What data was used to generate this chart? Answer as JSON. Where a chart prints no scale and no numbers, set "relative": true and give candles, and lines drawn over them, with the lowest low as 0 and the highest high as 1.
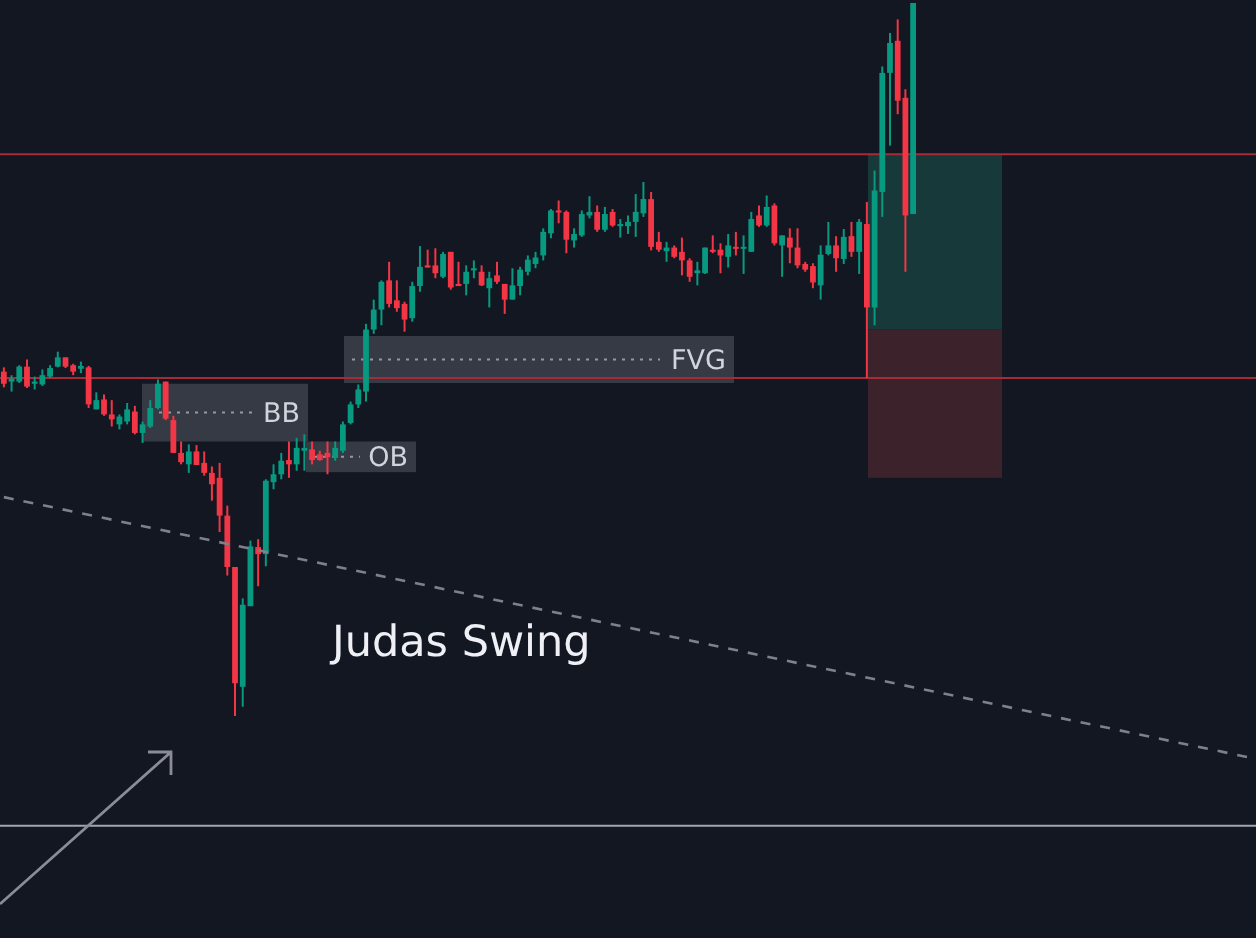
{
  "chart_data": {
    "type": "candlestick",
    "relative": true,
    "categories": [
      null,
      null,
      null,
      null,
      null,
      null,
      null,
      null,
      null,
      null,
      null,
      null,
      null,
      null,
      null,
      null,
      null,
      null,
      null,
      null,
      null,
      null,
      null,
      null,
      null,
      null,
      null,
      null,
      null,
      null,
      null,
      null,
      null,
      null,
      null,
      null,
      null,
      null,
      null,
      null,
      null,
      null,
      null,
      null,
      null,
      null,
      null,
      null,
      null,
      null,
      null,
      null,
      null,
      null,
      null,
      null,
      null,
      null,
      null,
      null,
      null,
      null,
      null,
      null,
      null,
      null,
      null,
      null,
      null,
      null,
      null,
      null,
      null,
      null,
      null,
      null,
      null,
      null,
      null,
      null,
      null,
      null,
      null,
      null,
      null,
      null,
      null,
      null,
      null,
      null,
      null,
      null,
      null,
      null,
      null,
      null,
      null,
      null,
      null,
      null,
      null,
      null,
      null,
      null,
      null,
      null,
      null,
      null,
      null,
      null,
      null,
      null,
      null,
      null,
      null,
      null,
      null,
      null,
      null,
      null,
      null,
      null,
      null,
      null,
      null,
      null,
      null,
      null,
      null,
      null,
      null,
      null,
      null,
      null,
      null,
      null,
      null,
      null,
      null,
      null,
      null,
      null,
      null,
      null,
      null,
      null,
      null,
      null,
      null,
      null,
      null,
      null,
      null,
      null,
      null,
      null,
      null,
      null,
      null,
      null,
      null,
      null,
      null
    ],
    "series": [
      {
        "ohlc": [
          [
            0.483,
            0.489,
            0.461,
            0.466
          ],
          [
            0.469,
            0.478,
            0.455,
            0.473
          ],
          [
            0.469,
            0.492,
            0.467,
            0.49
          ],
          [
            0.49,
            0.5,
            0.46,
            0.462
          ],
          [
            0.466,
            0.476,
            0.458,
            0.469
          ],
          [
            0.465,
            0.486,
            0.463,
            0.478
          ],
          [
            0.476,
            0.492,
            0.474,
            0.488
          ],
          [
            0.49,
            0.511,
            0.489,
            0.503
          ],
          [
            0.503,
            0.503,
            0.488,
            0.49
          ],
          [
            0.492,
            0.494,
            0.478,
            0.483
          ],
          [
            0.487,
            0.497,
            0.481,
            0.491
          ],
          [
            0.489,
            0.491,
            0.432,
            0.437
          ],
          [
            0.43,
            0.454,
            0.43,
            0.443
          ],
          [
            0.444,
            0.451,
            0.421,
            0.423
          ],
          [
            0.423,
            0.443,
            0.406,
            0.416
          ],
          [
            0.409,
            0.423,
            0.402,
            0.42
          ],
          [
            0.413,
            0.439,
            0.409,
            0.43
          ],
          [
            0.427,
            0.435,
            0.395,
            0.397
          ],
          [
            0.397,
            0.413,
            0.383,
            0.409
          ],
          [
            0.406,
            0.443,
            0.404,
            0.432
          ],
          [
            0.432,
            0.472,
            0.43,
            0.466
          ],
          [
            0.469,
            0.469,
            0.415,
            0.417
          ],
          [
            0.415,
            0.421,
            0.369,
            0.369
          ],
          [
            0.369,
            0.385,
            0.353,
            0.356
          ],
          [
            0.353,
            0.381,
            0.341,
            0.371
          ],
          [
            0.371,
            0.38,
            0.352,
            0.352
          ],
          [
            0.355,
            0.371,
            0.337,
            0.341
          ],
          [
            0.341,
            0.35,
            0.302,
            0.325
          ],
          [
            0.334,
            0.355,
            0.258,
            0.281
          ],
          [
            0.281,
            0.295,
            0.197,
            0.209
          ],
          [
            0.209,
            0.209,
            0,
            0.046
          ],
          [
            0.041,
            0.165,
            0.013,
            0.156
          ],
          [
            0.154,
            0.246,
            0.154,
            0.238
          ],
          [
            0.237,
            0.248,
            0.182,
            0.227
          ],
          [
            0.227,
            0.332,
            0.21,
            0.33
          ],
          [
            0.328,
            0.353,
            0.318,
            0.339
          ],
          [
            0.339,
            0.369,
            0.332,
            0.358
          ],
          [
            0.359,
            0.385,
            0.334,
            0.353
          ],
          [
            0.353,
            0.39,
            0.344,
            0.376
          ],
          [
            0.372,
            0.395,
            0.344,
            0.376
          ],
          [
            0.374,
            0.385,
            0.353,
            0.359
          ],
          [
            0.367,
            0.372,
            0.358,
            0.359
          ],
          [
            0.369,
            0.385,
            0.339,
            0.363
          ],
          [
            0.362,
            0.385,
            0.358,
            0.376
          ],
          [
            0.372,
            0.413,
            0.369,
            0.409
          ],
          [
            0.411,
            0.441,
            0.409,
            0.437
          ],
          [
            0.437,
            0.465,
            0.432,
            0.458
          ],
          [
            0.455,
            0.55,
            0.441,
            0.542
          ],
          [
            0.542,
            0.584,
            0.536,
            0.57
          ],
          [
            0.57,
            0.611,
            0.548,
            0.609
          ],
          [
            0.611,
            0.637,
            0.573,
            0.578
          ],
          [
            0.583,
            0.611,
            0.567,
            0.572
          ],
          [
            0.578,
            0.581,
            0.539,
            0.556
          ],
          [
            0.558,
            0.609,
            0.553,
            0.603
          ],
          [
            0.603,
            0.659,
            0.595,
            0.63
          ],
          [
            0.632,
            0.654,
            0.629,
            0.629
          ],
          [
            0.632,
            0.656,
            0.614,
            0.621
          ],
          [
            0.616,
            0.651,
            0.614,
            0.648
          ],
          [
            0.651,
            0.651,
            0.598,
            0.601
          ],
          [
            0.606,
            0.637,
            0.603,
            0.603
          ],
          [
            0.606,
            0.632,
            0.59,
            0.623
          ],
          [
            0.625,
            0.639,
            0.614,
            0.628
          ],
          [
            0.623,
            0.632,
            0.603,
            0.604
          ],
          [
            0.6,
            0.623,
            0.573,
            0.614
          ],
          [
            0.618,
            0.637,
            0.606,
            0.609
          ],
          [
            0.606,
            0.606,
            0.564,
            0.584
          ],
          [
            0.584,
            0.628,
            0.584,
            0.604
          ],
          [
            0.603,
            0.63,
            0.59,
            0.626
          ],
          [
            0.623,
            0.646,
            0.618,
            0.64
          ],
          [
            0.634,
            0.651,
            0.628,
            0.643
          ],
          [
            0.646,
            0.684,
            0.639,
            0.679
          ],
          [
            0.677,
            0.711,
            0.67,
            0.709
          ],
          [
            0.709,
            0.723,
            0.691,
            0.707
          ],
          [
            0.707,
            0.709,
            0.649,
            0.668
          ],
          [
            0.667,
            0.684,
            0.657,
            0.676
          ],
          [
            0.674,
            0.709,
            0.672,
            0.704
          ],
          [
            0.702,
            0.729,
            0.698,
            0.707
          ],
          [
            0.707,
            0.716,
            0.679,
            0.682
          ],
          [
            0.682,
            0.714,
            0.679,
            0.704
          ],
          [
            0.707,
            0.711,
            0.686,
            0.688
          ],
          [
            0.687,
            0.697,
            0.671,
            0.69
          ],
          [
            0.687,
            0.702,
            0.676,
            0.693
          ],
          [
            0.693,
            0.732,
            0.672,
            0.707
          ],
          [
            0.705,
            0.749,
            0.7,
            0.725
          ],
          [
            0.725,
            0.735,
            0.653,
            0.658
          ],
          [
            0.665,
            0.679,
            0.651,
            0.654
          ],
          [
            0.652,
            0.665,
            0.637,
            0.657
          ],
          [
            0.657,
            0.66,
            0.642,
            0.644
          ],
          [
            0.651,
            0.671,
            0.618,
            0.639
          ],
          [
            0.639,
            0.642,
            0.609,
            0.616
          ],
          [
            0.621,
            0.637,
            0.604,
            0.625
          ],
          [
            0.621,
            0.657,
            0.62,
            0.657
          ],
          [
            0.654,
            0.674,
            0.649,
            0.651
          ],
          [
            0.654,
            0.663,
            0.621,
            0.646
          ],
          [
            0.644,
            0.676,
            0.629,
            0.66
          ],
          [
            0.658,
            0.679,
            0.646,
            0.656
          ],
          [
            0.656,
            0.674,
            0.62,
            0.658
          ],
          [
            0.651,
            0.707,
            0.651,
            0.697
          ],
          [
            0.702,
            0.716,
            0.686,
            0.688
          ],
          [
            0.688,
            0.73,
            0.686,
            0.714
          ],
          [
            0.716,
            0.719,
            0.66,
            0.663
          ],
          [
            0.66,
            0.674,
            0.616,
            0.674
          ],
          [
            0.671,
            0.684,
            0.635,
            0.657
          ],
          [
            0.657,
            0.684,
            0.628,
            0.632
          ],
          [
            0.634,
            0.637,
            0.623,
            0.626
          ],
          [
            0.631,
            0.635,
            0.6,
            0.608
          ],
          [
            0.604,
            0.66,
            0.584,
            0.647
          ],
          [
            0.648,
            0.693,
            0.646,
            0.66
          ],
          [
            0.66,
            0.673,
            0.623,
            0.642
          ],
          [
            0.641,
            0.683,
            0.634,
            0.672
          ],
          [
            0.673,
            0.693,
            0.644,
            0.651
          ],
          [
            0.651,
            0.697,
            0.62,
            0.693
          ],
          [
            0.69,
            0.721,
            0.474,
            0.573
          ],
          [
            0.573,
            0.765,
            0.548,
            0.737
          ],
          [
            0.735,
            0.911,
            0.7,
            0.902
          ],
          [
            0.902,
            0.958,
            0.8,
            0.944
          ],
          [
            0.947,
            0.977,
            0.844,
            0.863
          ],
          [
            0.867,
            0.879,
            0.623,
            0.702
          ],
          [
            0.704,
            1,
            0.704,
            1
          ],
          null,
          null,
          null,
          null,
          null,
          null,
          null,
          null,
          null,
          null,
          null,
          null,
          null,
          null,
          null,
          null,
          null,
          null,
          null,
          null,
          null,
          null,
          null,
          null,
          null,
          null,
          null,
          null,
          null,
          null,
          null,
          null,
          null,
          null,
          null,
          null,
          null,
          null,
          null,
          null,
          null,
          null,
          null,
          null
        ],
        "colors": [
          "#f23645",
          "#089981",
          "#089981",
          "#f23645",
          "#089981",
          "#089981",
          "#089981",
          "#089981",
          "#f23645",
          "#f23645",
          "#089981",
          "#f23645",
          "#089981",
          "#f23645",
          "#f23645",
          "#089981",
          "#089981",
          "#f23645",
          "#089981",
          "#089981",
          "#089981",
          "#f23645",
          "#f23645",
          "#f23645",
          "#089981",
          "#f23645",
          "#f23645",
          "#f23645",
          "#f23645",
          "#f23645",
          "#f23645",
          "#089981",
          "#089981",
          "#f23645",
          "#089981",
          "#089981",
          "#089981",
          "#f23645",
          "#089981",
          "#089981",
          "#f23645",
          "#f23645",
          "#f23645",
          "#089981",
          "#089981",
          "#089981",
          "#089981",
          "#089981",
          "#089981",
          "#089981",
          "#f23645",
          "#f23645",
          "#f23645",
          "#089981",
          "#089981",
          "#f23645",
          "#f23645",
          "#089981",
          "#f23645",
          "#f23645",
          "#089981",
          "#089981",
          "#f23645",
          "#089981",
          "#f23645",
          "#f23645",
          "#089981",
          "#089981",
          "#089981",
          "#089981",
          "#089981",
          "#089981",
          "#f23645",
          "#f23645",
          "#089981",
          "#089981",
          "#089981",
          "#f23645",
          "#089981",
          "#f23645",
          "#089981",
          "#089981",
          "#089981",
          "#089981",
          "#f23645",
          "#f23645",
          "#089981",
          "#f23645",
          "#f23645",
          "#f23645",
          "#089981",
          "#089981",
          "#f23645",
          "#f23645",
          "#089981",
          "#f23645",
          "#089981",
          "#089981",
          "#f23645",
          "#089981",
          "#f23645",
          "#089981",
          "#f23645",
          "#f23645",
          "#f23645",
          "#f23645",
          "#089981",
          "#089981",
          "#f23645",
          "#089981",
          "#f23645",
          "#089981",
          "#f23645",
          "#089981",
          "#089981",
          "#089981",
          "#f23645",
          "#f23645",
          "#089981",
          null,
          null,
          null,
          null,
          null,
          null,
          null,
          null,
          null,
          null,
          null,
          null,
          null,
          null,
          null,
          null,
          null,
          null,
          null,
          null,
          null,
          null,
          null,
          null,
          null,
          null,
          null,
          null,
          null,
          null,
          null,
          null,
          null,
          null,
          null,
          null,
          null,
          null,
          null,
          null,
          null,
          null,
          null,
          null
        ]
      },
      {
        "type": "line",
        "color": "#7e818b",
        "line_style": "dashed",
        "values": [
          0.307,
          null,
          null,
          null,
          null,
          null,
          null,
          null,
          null,
          null,
          null,
          null,
          null,
          null,
          null,
          null,
          null,
          null,
          null,
          null,
          null,
          null,
          null,
          null,
          null,
          null,
          null,
          null,
          null,
          null,
          null,
          null,
          null,
          null,
          null,
          null,
          null,
          null,
          null,
          null,
          null,
          null,
          null,
          null,
          null,
          null,
          null,
          null,
          null,
          null,
          null,
          null,
          null,
          null,
          null,
          null,
          null,
          null,
          null,
          null,
          null,
          null,
          null,
          null,
          null,
          null,
          null,
          null,
          null,
          null,
          null,
          null,
          null,
          null,
          null,
          null,
          null,
          null,
          null,
          null,
          null,
          null,
          null,
          null,
          null,
          null,
          null,
          null,
          null,
          null,
          null,
          null,
          null,
          null,
          null,
          null,
          null,
          null,
          null,
          null,
          null,
          null,
          null,
          null,
          null,
          null,
          null,
          null,
          null,
          null,
          null,
          null,
          null,
          null,
          null,
          null,
          null,
          null,
          null,
          null,
          null,
          null,
          null,
          null,
          null,
          null,
          null,
          null,
          null,
          null,
          null,
          null,
          null,
          null,
          null,
          null,
          null,
          null,
          null,
          null,
          null,
          null,
          null,
          null,
          null,
          null,
          null,
          null,
          null,
          null,
          null,
          null,
          null,
          null,
          null,
          null,
          null,
          null,
          null,
          null,
          null,
          null,
          -0.059
        ]
      }
    ],
    "ref_lines": [
      {
        "axis": "y",
        "value": 0.788,
        "color": "#a62b37"
      },
      {
        "axis": "y",
        "value": 0.474,
        "color": "#a62b37"
      },
      {
        "axis": "y",
        "value": -0.154,
        "color": "#a3a6ae"
      }
    ],
    "bands": [
      {
        "axis": "y",
        "from": 0.467,
        "to": 0.533,
        "label": "FVG",
        "color": "#363a45"
      },
      {
        "axis": "y",
        "from": 0.385,
        "to": 0.466,
        "label": "BB",
        "color": "#363a45"
      },
      {
        "axis": "y",
        "from": 0.342,
        "to": 0.385,
        "label": "OB",
        "color": "#363a45"
      },
      {
        "axis": "y",
        "from": 0.542,
        "to": 0.788,
        "color": "#17393a"
      },
      {
        "axis": "y",
        "from": 0.334,
        "to": 0.542,
        "color": "#3c222a"
      }
    ],
    "annotations": [
      "Judas Swing"
    ]
  }
}
